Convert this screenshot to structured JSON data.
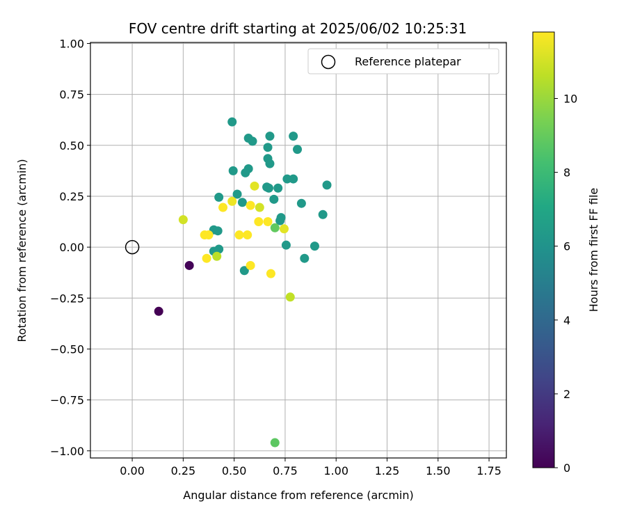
{
  "chart_data": {
    "type": "scatter",
    "title": "FOV centre drift starting at 2025/06/02 10:25:31",
    "xlabel": "Angular distance from reference (arcmin)",
    "ylabel": "Rotation from reference (arcmin)",
    "xlim": [
      -0.205,
      1.835
    ],
    "ylim": [
      -1.035,
      1.005
    ],
    "xticks": [
      0.0,
      0.25,
      0.5,
      0.75,
      1.0,
      1.25,
      1.5,
      1.75
    ],
    "xtick_labels": [
      "0.00",
      "0.25",
      "0.50",
      "0.75",
      "1.00",
      "1.25",
      "1.50",
      "1.75"
    ],
    "yticks": [
      1.0,
      0.75,
      0.5,
      0.25,
      0.0,
      -0.25,
      -0.5,
      -0.75,
      -1.0
    ],
    "ytick_labels": [
      "1.00",
      "0.75",
      "0.50",
      "0.25",
      "0.00",
      "−0.25",
      "−0.50",
      "−0.75",
      "−1.00"
    ],
    "grid": true,
    "legend": {
      "placement": "top-right",
      "entries": [
        "Reference platepar"
      ]
    },
    "reference_point": {
      "x": 0.0,
      "y": 0.0
    },
    "colorbar": {
      "label": "Hours from first FF file",
      "colormap": "viridis",
      "range": [
        0,
        11.8
      ],
      "ticks": [
        0,
        2,
        4,
        6,
        8,
        10
      ],
      "tick_labels": [
        "0",
        "2",
        "4",
        "6",
        "8",
        "10"
      ]
    },
    "points": [
      {
        "x": 0.13,
        "y": -0.315,
        "h": 0.0
      },
      {
        "x": 0.28,
        "y": -0.09,
        "h": 0.1
      },
      {
        "x": 0.49,
        "y": 0.615,
        "h": 6.3
      },
      {
        "x": 0.57,
        "y": 0.535,
        "h": 6.3
      },
      {
        "x": 0.59,
        "y": 0.52,
        "h": 6.3
      },
      {
        "x": 0.675,
        "y": 0.545,
        "h": 6.3
      },
      {
        "x": 0.79,
        "y": 0.545,
        "h": 6.3
      },
      {
        "x": 0.665,
        "y": 0.49,
        "h": 6.3
      },
      {
        "x": 0.81,
        "y": 0.48,
        "h": 6.3
      },
      {
        "x": 0.665,
        "y": 0.435,
        "h": 6.3
      },
      {
        "x": 0.675,
        "y": 0.41,
        "h": 6.3
      },
      {
        "x": 0.57,
        "y": 0.385,
        "h": 6.3
      },
      {
        "x": 0.555,
        "y": 0.365,
        "h": 6.3
      },
      {
        "x": 0.495,
        "y": 0.375,
        "h": 6.3
      },
      {
        "x": 0.76,
        "y": 0.335,
        "h": 6.3
      },
      {
        "x": 0.79,
        "y": 0.335,
        "h": 6.3
      },
      {
        "x": 0.955,
        "y": 0.305,
        "h": 6.3
      },
      {
        "x": 0.66,
        "y": 0.295,
        "h": 6.3
      },
      {
        "x": 0.67,
        "y": 0.29,
        "h": 6.3
      },
      {
        "x": 0.715,
        "y": 0.29,
        "h": 6.3
      },
      {
        "x": 0.515,
        "y": 0.26,
        "h": 6.3
      },
      {
        "x": 0.425,
        "y": 0.245,
        "h": 6.3
      },
      {
        "x": 0.695,
        "y": 0.235,
        "h": 6.3
      },
      {
        "x": 0.54,
        "y": 0.22,
        "h": 6.3
      },
      {
        "x": 0.83,
        "y": 0.215,
        "h": 6.3
      },
      {
        "x": 0.935,
        "y": 0.16,
        "h": 6.3
      },
      {
        "x": 0.73,
        "y": 0.145,
        "h": 6.3
      },
      {
        "x": 0.725,
        "y": 0.13,
        "h": 6.3
      },
      {
        "x": 0.4,
        "y": 0.085,
        "h": 6.3
      },
      {
        "x": 0.42,
        "y": 0.08,
        "h": 6.3
      },
      {
        "x": 0.755,
        "y": 0.01,
        "h": 6.3
      },
      {
        "x": 0.895,
        "y": 0.005,
        "h": 6.3
      },
      {
        "x": 0.425,
        "y": -0.01,
        "h": 6.3
      },
      {
        "x": 0.4,
        "y": -0.02,
        "h": 6.3
      },
      {
        "x": 0.845,
        "y": -0.055,
        "h": 6.3
      },
      {
        "x": 0.55,
        "y": -0.115,
        "h": 6.3
      },
      {
        "x": 0.7,
        "y": -0.96,
        "h": 8.8
      },
      {
        "x": 0.7,
        "y": 0.095,
        "h": 8.9
      },
      {
        "x": 0.415,
        "y": -0.045,
        "h": 10.6
      },
      {
        "x": 0.775,
        "y": -0.245,
        "h": 10.7
      },
      {
        "x": 0.25,
        "y": 0.135,
        "h": 11.0
      },
      {
        "x": 0.625,
        "y": 0.195,
        "h": 11.0
      },
      {
        "x": 0.6,
        "y": 0.3,
        "h": 11.3
      },
      {
        "x": 0.745,
        "y": 0.09,
        "h": 11.3
      },
      {
        "x": 0.49,
        "y": 0.225,
        "h": 11.5
      },
      {
        "x": 0.445,
        "y": 0.195,
        "h": 11.8
      },
      {
        "x": 0.58,
        "y": 0.205,
        "h": 11.8
      },
      {
        "x": 0.62,
        "y": 0.125,
        "h": 11.8
      },
      {
        "x": 0.665,
        "y": 0.125,
        "h": 11.8
      },
      {
        "x": 0.355,
        "y": 0.06,
        "h": 11.8
      },
      {
        "x": 0.375,
        "y": 0.06,
        "h": 11.8
      },
      {
        "x": 0.525,
        "y": 0.06,
        "h": 11.8
      },
      {
        "x": 0.565,
        "y": 0.06,
        "h": 11.8
      },
      {
        "x": 0.365,
        "y": -0.055,
        "h": 11.8
      },
      {
        "x": 0.58,
        "y": -0.09,
        "h": 11.8
      },
      {
        "x": 0.68,
        "y": -0.13,
        "h": 11.8
      }
    ]
  }
}
